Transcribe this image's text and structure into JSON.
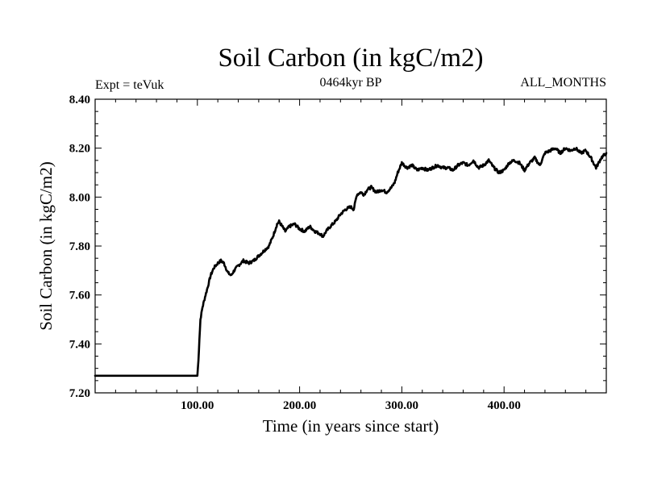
{
  "chart_data": {
    "type": "line",
    "title": "Soil Carbon (in kgC/m2)",
    "subtitle": "0464kyr BP",
    "left_annotation": "Expt = teVuk",
    "right_annotation": "ALL_MONTHS",
    "xlabel": "Time (in years since start)",
    "ylabel": "Soil Carbon (in kgC/m2)",
    "xlim": [
      0,
      500
    ],
    "ylim": [
      7.2,
      8.4
    ],
    "x_ticks": [
      {
        "value": 100,
        "label": "100.00"
      },
      {
        "value": 200,
        "label": "200.00"
      },
      {
        "value": 300,
        "label": "300.00"
      },
      {
        "value": 400,
        "label": "400.00"
      }
    ],
    "y_ticks": [
      {
        "value": 7.2,
        "label": "7.20"
      },
      {
        "value": 7.4,
        "label": "7.40"
      },
      {
        "value": 7.6,
        "label": "7.60"
      },
      {
        "value": 7.8,
        "label": "7.80"
      },
      {
        "value": 8.0,
        "label": "8.00"
      },
      {
        "value": 8.2,
        "label": "8.20"
      },
      {
        "value": 8.4,
        "label": "8.40"
      }
    ],
    "line_color": "#000000",
    "grid": false,
    "series": [
      {
        "x": [
          0,
          100,
          101,
          102,
          103,
          105,
          108,
          110,
          113,
          116,
          120,
          123,
          126,
          130,
          133,
          136,
          140,
          145,
          150,
          155,
          160,
          165,
          170,
          174,
          178,
          180,
          183,
          186,
          190,
          195,
          200,
          205,
          210,
          215,
          220,
          223,
          226,
          230,
          235,
          240,
          245,
          250,
          253,
          256,
          260,
          263,
          266,
          270,
          275,
          280,
          285,
          290,
          293,
          296,
          300,
          305,
          310,
          315,
          320,
          325,
          330,
          335,
          340,
          345,
          350,
          355,
          360,
          365,
          370,
          375,
          380,
          385,
          390,
          395,
          400,
          405,
          410,
          415,
          420,
          425,
          430,
          435,
          440,
          445,
          450,
          455,
          460,
          465,
          470,
          475,
          480,
          485,
          490,
          495,
          500
        ],
        "y": [
          7.27,
          7.27,
          7.33,
          7.42,
          7.5,
          7.55,
          7.6,
          7.63,
          7.68,
          7.71,
          7.73,
          7.74,
          7.73,
          7.69,
          7.68,
          7.7,
          7.72,
          7.74,
          7.73,
          7.74,
          7.76,
          7.78,
          7.8,
          7.84,
          7.89,
          7.9,
          7.88,
          7.86,
          7.88,
          7.89,
          7.87,
          7.86,
          7.88,
          7.86,
          7.85,
          7.84,
          7.86,
          7.88,
          7.9,
          7.93,
          7.95,
          7.96,
          7.95,
          8.01,
          8.02,
          8.01,
          8.03,
          8.04,
          8.02,
          8.03,
          8.02,
          8.04,
          8.06,
          8.1,
          8.14,
          8.12,
          8.13,
          8.11,
          8.12,
          8.11,
          8.12,
          8.13,
          8.12,
          8.12,
          8.11,
          8.13,
          8.14,
          8.13,
          8.15,
          8.12,
          8.13,
          8.15,
          8.12,
          8.1,
          8.11,
          8.14,
          8.15,
          8.14,
          8.11,
          8.14,
          8.16,
          8.13,
          8.18,
          8.19,
          8.2,
          8.18,
          8.2,
          8.19,
          8.2,
          8.18,
          8.19,
          8.16,
          8.12,
          8.16,
          8.18
        ]
      }
    ]
  }
}
